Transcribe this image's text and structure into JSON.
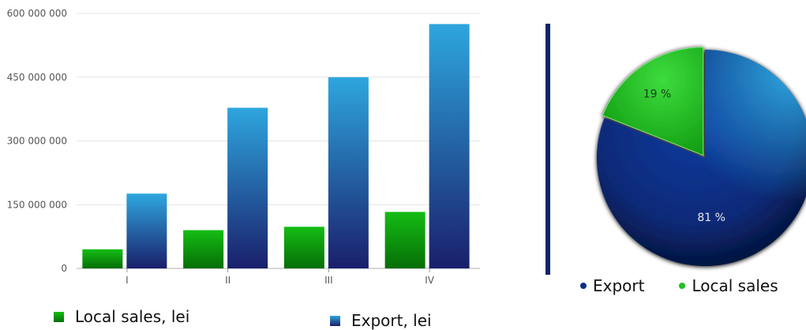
{
  "chart_data": [
    {
      "type": "bar",
      "categories": [
        "I",
        "II",
        "III",
        "IV"
      ],
      "series": [
        {
          "name": "Local sales, lei",
          "values": [
            45000000,
            90000000,
            98000000,
            133000000
          ],
          "color": "#0e9a0e"
        },
        {
          "name": "Export, lei",
          "values": [
            176000000,
            378000000,
            450000000,
            575000000
          ],
          "color": "#2a8fd1"
        }
      ],
      "yticks": [
        "0",
        "150 000 000",
        "300 000 000",
        "450 000 000",
        "600 000 000"
      ],
      "ylim": [
        0,
        600000000
      ],
      "grid": true,
      "legend": "bottom"
    },
    {
      "type": "pie",
      "slices": [
        {
          "name": "Export",
          "value": 81,
          "label": "81 %",
          "color": "#0d2f86"
        },
        {
          "name": "Local sales",
          "value": 19,
          "label": "19 %",
          "color": "#22c022"
        }
      ],
      "legend": "bottom"
    }
  ]
}
